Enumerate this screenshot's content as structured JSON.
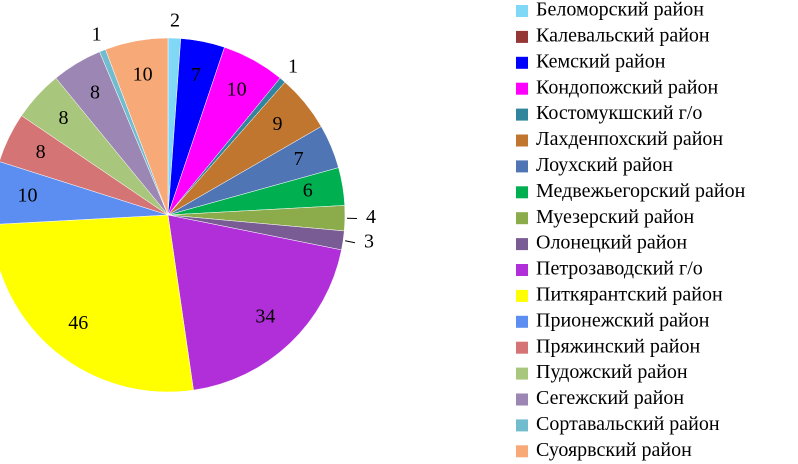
{
  "chart_data": {
    "type": "pie",
    "categories": [
      "Беломорский район",
      "Калевальский район",
      "Кемский район",
      "Кондопожский район",
      "Костомукшский г/о",
      "Лахденпохский район",
      "Лоухский район",
      "Медвежьегорский район",
      "Муезерский район",
      "Олонецкий район",
      "Петрозаводский г/о",
      "Питкярантский район",
      "Прионежский район",
      "Пряжинский район",
      "Пудожский район",
      "Сегежский район",
      "Сортавальский район",
      "Суоярвский район"
    ],
    "values": [
      2,
      0,
      7,
      10,
      1,
      9,
      7,
      6,
      4,
      3,
      34,
      46,
      10,
      8,
      8,
      8,
      1,
      10
    ],
    "colors": [
      "#7fd8f5",
      "#953735",
      "#0000ff",
      "#ff00ff",
      "#31859c",
      "#c0762f",
      "#4f75b5",
      "#00b050",
      "#8cac4c",
      "#7a5c95",
      "#b02fd8",
      "#ffff00",
      "#5b8ef0",
      "#d47474",
      "#a9c77c",
      "#9c86b4",
      "#72bcd0",
      "#f7a978"
    ],
    "legend": "right"
  }
}
